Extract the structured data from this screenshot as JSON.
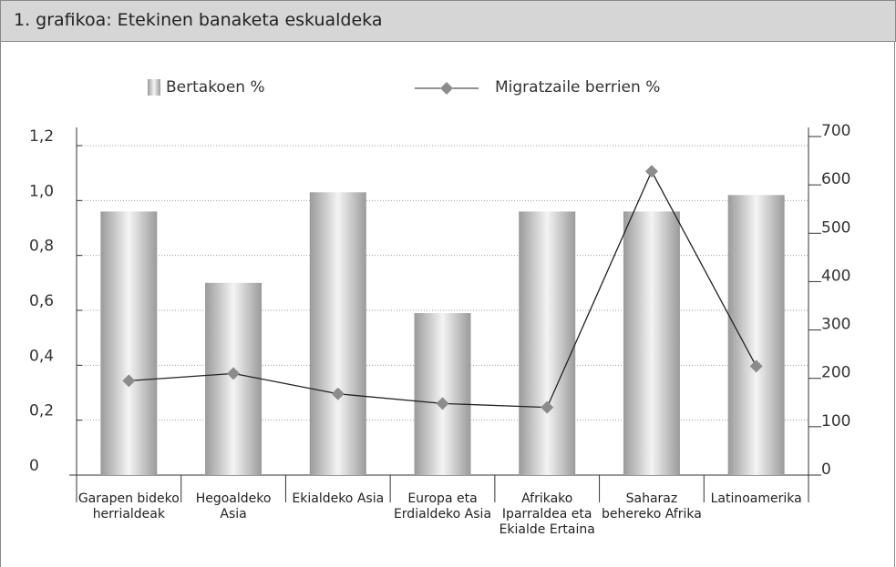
{
  "title": "1. grafikoa: Etekinen banaketa eskualdeka",
  "chart_data": {
    "type": "bar-line",
    "categories": [
      "Garapen bideko herrialdeak",
      "Hegoaldeko Asia",
      "Ekialdeko Asia",
      "Europa eta Erdialdeko Asia",
      "Afrikako Iparraldea eta Ekialde Ertaina",
      "Saharaz behereko Afrika",
      "Latinoamerika"
    ],
    "series": [
      {
        "name": "Bertakoen %",
        "type": "bar",
        "color": "#b8b8b8",
        "values": [
          0.96,
          0.7,
          1.03,
          0.59,
          0.96,
          0.96,
          1.02
        ]
      },
      {
        "name": "Migratzaile berrien %",
        "type": "line",
        "axis": "y2",
        "color": "#8c8c8c",
        "values": [
          195,
          210,
          168,
          148,
          140,
          628,
          225
        ]
      }
    ],
    "ylim": [
      0,
      1.2
    ],
    "yticks": [
      {
        "value": 0,
        "label": "0"
      },
      {
        "value": 0.2,
        "label": "0,2"
      },
      {
        "value": 0.4,
        "label": "0,4"
      },
      {
        "value": 0.6,
        "label": "0,6"
      },
      {
        "value": 0.8,
        "label": "0,8"
      },
      {
        "value": 1.0,
        "label": "1,0"
      },
      {
        "value": 1.2,
        "label": "1,2"
      }
    ],
    "y2lim": [
      0,
      700
    ],
    "y2ticks": [
      0,
      100,
      200,
      300,
      400,
      500,
      600,
      700
    ],
    "grid": true
  }
}
